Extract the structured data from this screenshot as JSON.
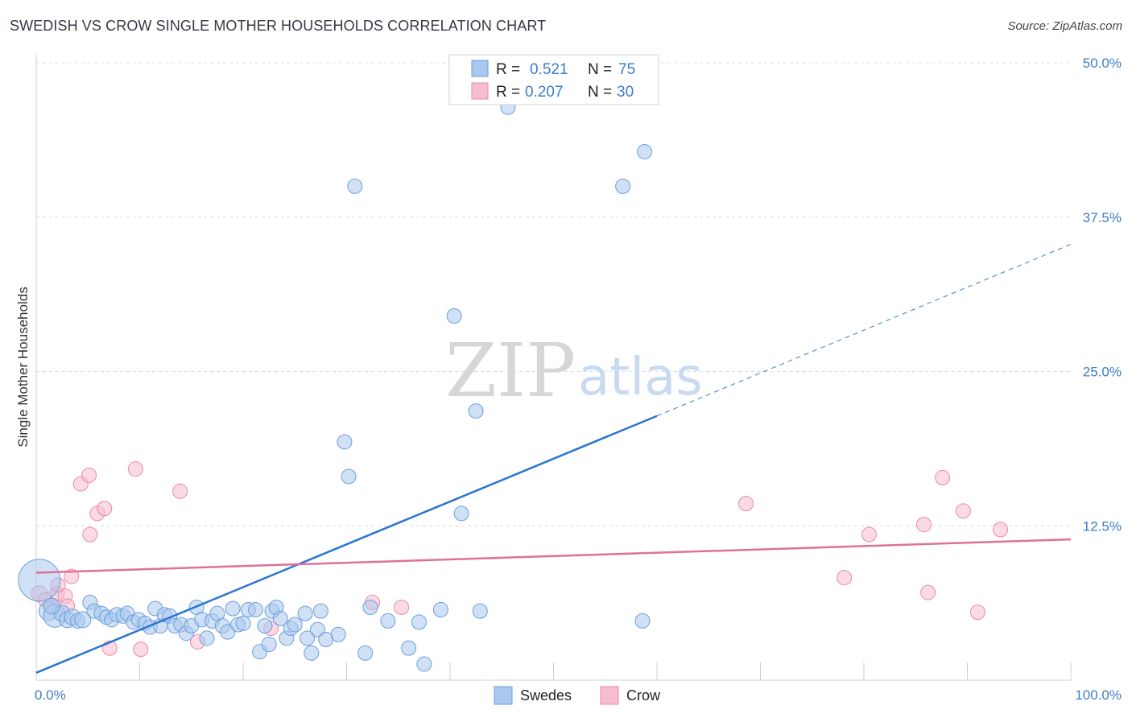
{
  "header": {
    "title": "SWEDISH VS CROW SINGLE MOTHER HOUSEHOLDS CORRELATION CHART",
    "source": "Source: ZipAtlas.com"
  },
  "watermark": {
    "zip": "ZIP",
    "atlas": "atlas"
  },
  "legend": {
    "rows": [
      {
        "r_label": "R =",
        "r_value": "0.521",
        "n_label": "N =",
        "n_value": "75",
        "color": "#a9c8ef"
      },
      {
        "r_label": "R =",
        "r_value": "0.207",
        "n_label": "N =",
        "n_value": "30",
        "color": "#f6bcd0"
      }
    ]
  },
  "bottom_legend": [
    {
      "label": "Swedes",
      "color": "#a9c8ef"
    },
    {
      "label": "Crow",
      "color": "#f6bcd0"
    }
  ],
  "colors": {
    "swedes_fill": "#a9c8ef",
    "swedes_stroke": "#6a9fdc",
    "swedes_line": "#2b74d0",
    "crow_fill": "#f6bcd0",
    "crow_stroke": "#e88aa8",
    "crow_line": "#e0709a",
    "tick_label": "#3d7cc9",
    "grid": "#dcdcdc"
  },
  "chart_data": {
    "type": "scatter",
    "title": "SWEDISH VS CROW SINGLE MOTHER HOUSEHOLDS CORRELATION CHART",
    "xlabel": "",
    "ylabel": "Single Mother Households",
    "xlim": [
      0,
      100
    ],
    "ylim": [
      0,
      50
    ],
    "x_tick_labels": [
      "0.0%",
      "100.0%"
    ],
    "y_ticks": [
      12.5,
      25.0,
      37.5,
      50.0
    ],
    "y_tick_labels": [
      "12.5%",
      "25.0%",
      "37.5%",
      "50.0%"
    ],
    "grid": true,
    "legend_position": "top-center",
    "series": [
      {
        "name": "Swedes",
        "r": 0.521,
        "n": 75,
        "trend": {
          "x0": 0,
          "y0": 0.6,
          "x1": 60,
          "y1": 21.4,
          "dash_to_x": 100,
          "dash_to_y": 35.3
        },
        "points": [
          [
            0.3,
            8.1,
            26
          ],
          [
            1.2,
            5.6,
            12
          ],
          [
            1.8,
            5.2,
            14
          ],
          [
            2.5,
            5.4,
            10
          ],
          [
            3.0,
            4.9,
            10
          ],
          [
            3.5,
            5.1,
            10
          ],
          [
            4.0,
            4.8,
            9
          ],
          [
            4.5,
            4.9,
            10
          ],
          [
            5.2,
            6.3,
            9
          ],
          [
            5.6,
            5.6,
            9
          ],
          [
            6.3,
            5.4,
            9
          ],
          [
            6.8,
            5.1,
            9
          ],
          [
            7.3,
            4.9,
            9
          ],
          [
            7.8,
            5.3,
            9
          ],
          [
            8.4,
            5.2,
            9
          ],
          [
            8.8,
            5.4,
            9
          ],
          [
            9.4,
            4.7,
            9
          ],
          [
            9.9,
            4.9,
            9
          ],
          [
            10.5,
            4.6,
            9
          ],
          [
            11.0,
            4.3,
            9
          ],
          [
            11.5,
            5.8,
            9
          ],
          [
            12.0,
            4.4,
            9
          ],
          [
            12.4,
            5.3,
            9
          ],
          [
            12.9,
            5.2,
            9
          ],
          [
            13.4,
            4.4,
            9
          ],
          [
            14.0,
            4.5,
            9
          ],
          [
            14.5,
            3.8,
            9
          ],
          [
            15.0,
            4.4,
            9
          ],
          [
            15.5,
            5.9,
            9
          ],
          [
            16.0,
            4.9,
            9
          ],
          [
            16.5,
            3.4,
            9
          ],
          [
            17.0,
            4.8,
            9
          ],
          [
            17.5,
            5.4,
            9
          ],
          [
            18.0,
            4.4,
            9
          ],
          [
            18.5,
            3.9,
            9
          ],
          [
            19.0,
            5.8,
            9
          ],
          [
            19.5,
            4.5,
            9
          ],
          [
            20.0,
            4.6,
            9
          ],
          [
            20.5,
            5.7,
            9
          ],
          [
            21.2,
            5.7,
            9
          ],
          [
            21.6,
            2.3,
            9
          ],
          [
            22.1,
            4.4,
            9
          ],
          [
            22.5,
            2.9,
            9
          ],
          [
            22.8,
            5.6,
            9
          ],
          [
            23.2,
            5.9,
            9
          ],
          [
            23.6,
            5.0,
            9
          ],
          [
            24.2,
            3.4,
            9
          ],
          [
            24.6,
            4.2,
            9
          ],
          [
            25.0,
            4.5,
            9
          ],
          [
            26.0,
            5.4,
            9
          ],
          [
            26.2,
            3.4,
            9
          ],
          [
            26.6,
            2.2,
            9
          ],
          [
            27.2,
            4.1,
            9
          ],
          [
            27.5,
            5.6,
            9
          ],
          [
            28.0,
            3.3,
            9
          ],
          [
            29.2,
            3.7,
            9
          ],
          [
            29.8,
            19.3,
            9
          ],
          [
            30.2,
            16.5,
            9
          ],
          [
            30.8,
            40.0,
            9
          ],
          [
            31.8,
            2.2,
            9
          ],
          [
            32.3,
            5.9,
            9
          ],
          [
            34.0,
            4.8,
            9
          ],
          [
            36.0,
            2.6,
            9
          ],
          [
            37.0,
            4.7,
            9
          ],
          [
            37.5,
            1.3,
            9
          ],
          [
            39.1,
            5.7,
            9
          ],
          [
            40.4,
            29.5,
            9
          ],
          [
            41.1,
            13.5,
            9
          ],
          [
            42.5,
            21.8,
            9
          ],
          [
            42.9,
            5.6,
            9
          ],
          [
            45.6,
            46.4,
            9
          ],
          [
            56.7,
            40.0,
            9
          ],
          [
            58.6,
            4.8,
            9
          ],
          [
            58.8,
            42.8,
            9
          ],
          [
            1.5,
            6.0,
            10
          ]
        ]
      },
      {
        "name": "Crow",
        "r": 0.207,
        "n": 30,
        "trend": {
          "x0": 0,
          "y0": 8.7,
          "x1": 100,
          "y1": 11.4
        },
        "points": [
          [
            0.3,
            7.0,
            10
          ],
          [
            0.9,
            6.5,
            9
          ],
          [
            1.4,
            6.0,
            9
          ],
          [
            2.0,
            7.0,
            9
          ],
          [
            2.1,
            7.7,
            9
          ],
          [
            2.8,
            6.8,
            9
          ],
          [
            3.0,
            6.0,
            9
          ],
          [
            3.4,
            8.4,
            9
          ],
          [
            4.3,
            15.9,
            9
          ],
          [
            5.2,
            11.8,
            9
          ],
          [
            5.1,
            16.6,
            9
          ],
          [
            5.9,
            13.5,
            9
          ],
          [
            6.6,
            13.9,
            9
          ],
          [
            7.1,
            2.6,
            9
          ],
          [
            9.6,
            17.1,
            9
          ],
          [
            10.1,
            2.5,
            9
          ],
          [
            13.9,
            15.3,
            9
          ],
          [
            15.6,
            3.1,
            9
          ],
          [
            22.7,
            4.2,
            9
          ],
          [
            32.5,
            6.3,
            9
          ],
          [
            35.3,
            5.9,
            9
          ],
          [
            68.6,
            14.3,
            9
          ],
          [
            78.1,
            8.3,
            9
          ],
          [
            80.5,
            11.8,
            9
          ],
          [
            85.8,
            12.6,
            9
          ],
          [
            86.2,
            7.1,
            9
          ],
          [
            87.6,
            16.4,
            9
          ],
          [
            89.6,
            13.7,
            9
          ],
          [
            91.0,
            5.5,
            9
          ],
          [
            93.2,
            12.2,
            9
          ]
        ]
      }
    ]
  }
}
